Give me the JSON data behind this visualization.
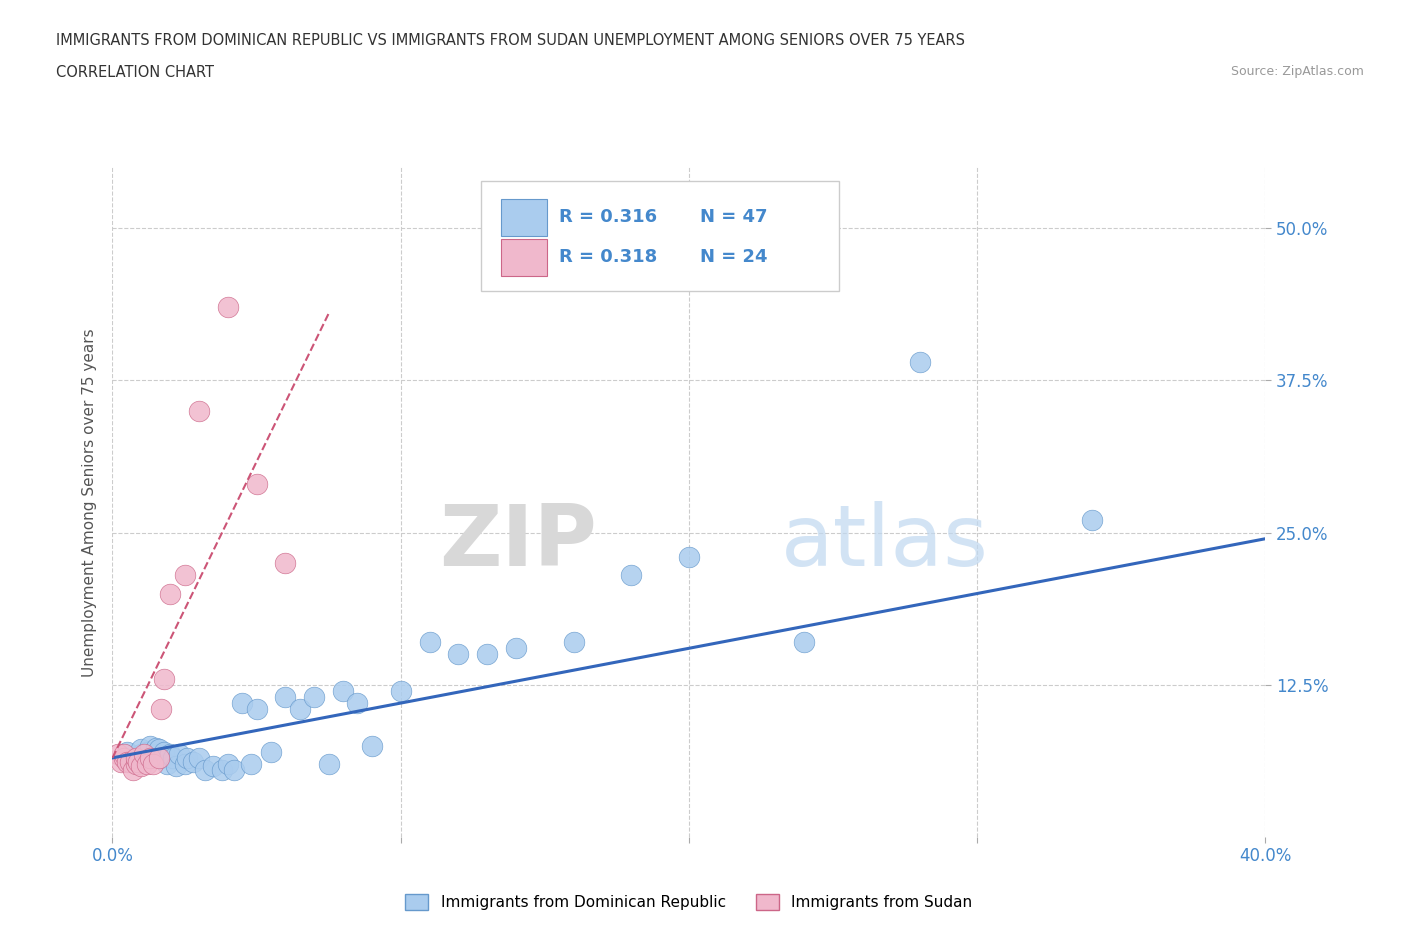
{
  "title_line1": "IMMIGRANTS FROM DOMINICAN REPUBLIC VS IMMIGRANTS FROM SUDAN UNEMPLOYMENT AMONG SENIORS OVER 75 YEARS",
  "title_line2": "CORRELATION CHART",
  "source": "Source: ZipAtlas.com",
  "ylabel": "Unemployment Among Seniors over 75 years",
  "xlim": [
    0.0,
    0.4
  ],
  "ylim": [
    0.0,
    0.55
  ],
  "xticks": [
    0.0,
    0.1,
    0.2,
    0.3,
    0.4
  ],
  "xticklabels": [
    "0.0%",
    "",
    "",
    "",
    "40.0%"
  ],
  "yticks": [
    0.125,
    0.25,
    0.375,
    0.5
  ],
  "yticklabels": [
    "12.5%",
    "25.0%",
    "37.5%",
    "50.0%"
  ],
  "grid_color": "#cccccc",
  "background_color": "#ffffff",
  "blue_color": "#aaccee",
  "pink_color": "#f0b8cc",
  "blue_edge_color": "#6699cc",
  "pink_edge_color": "#cc6688",
  "blue_line_color": "#3366bb",
  "pink_line_color": "#cc5577",
  "legend_label1": "Immigrants from Dominican Republic",
  "legend_label2": "Immigrants from Sudan",
  "watermark_zip": "ZIP",
  "watermark_atlas": "atlas",
  "blue_scatter_x": [
    0.005,
    0.008,
    0.01,
    0.01,
    0.012,
    0.013,
    0.015,
    0.015,
    0.016,
    0.017,
    0.018,
    0.019,
    0.02,
    0.021,
    0.022,
    0.023,
    0.025,
    0.026,
    0.028,
    0.03,
    0.032,
    0.035,
    0.038,
    0.04,
    0.042,
    0.045,
    0.048,
    0.05,
    0.055,
    0.06,
    0.065,
    0.07,
    0.075,
    0.08,
    0.085,
    0.09,
    0.1,
    0.11,
    0.12,
    0.13,
    0.14,
    0.16,
    0.18,
    0.2,
    0.24,
    0.28,
    0.34
  ],
  "blue_scatter_y": [
    0.07,
    0.065,
    0.068,
    0.072,
    0.07,
    0.075,
    0.068,
    0.073,
    0.072,
    0.065,
    0.07,
    0.06,
    0.068,
    0.065,
    0.058,
    0.068,
    0.06,
    0.065,
    0.062,
    0.065,
    0.055,
    0.058,
    0.055,
    0.06,
    0.055,
    0.11,
    0.06,
    0.105,
    0.07,
    0.115,
    0.105,
    0.115,
    0.06,
    0.12,
    0.11,
    0.075,
    0.12,
    0.16,
    0.15,
    0.15,
    0.155,
    0.16,
    0.215,
    0.23,
    0.16,
    0.39,
    0.26
  ],
  "pink_scatter_x": [
    0.002,
    0.003,
    0.004,
    0.004,
    0.005,
    0.006,
    0.007,
    0.008,
    0.008,
    0.009,
    0.01,
    0.011,
    0.012,
    0.013,
    0.014,
    0.016,
    0.017,
    0.018,
    0.02,
    0.025,
    0.03,
    0.04,
    0.05,
    0.06
  ],
  "pink_scatter_y": [
    0.068,
    0.062,
    0.065,
    0.068,
    0.062,
    0.062,
    0.055,
    0.06,
    0.065,
    0.062,
    0.058,
    0.068,
    0.06,
    0.065,
    0.06,
    0.065,
    0.105,
    0.13,
    0.2,
    0.215,
    0.35,
    0.435,
    0.29,
    0.225
  ],
  "blue_trend_x": [
    0.0,
    0.4
  ],
  "blue_trend_y": [
    0.065,
    0.245
  ],
  "pink_trend_x": [
    0.0,
    0.075
  ],
  "pink_trend_y": [
    0.065,
    0.43
  ]
}
